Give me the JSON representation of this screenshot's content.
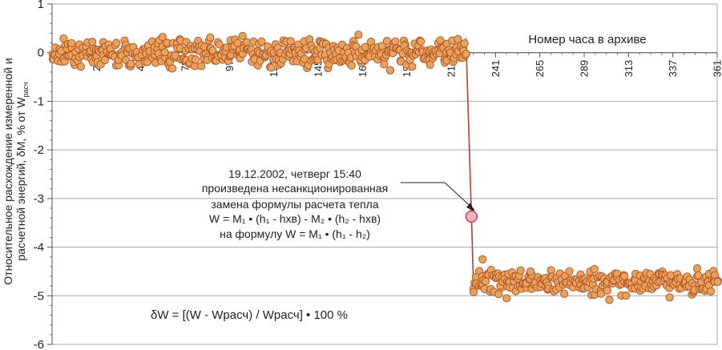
{
  "chart_data": {
    "type": "scatter",
    "xlabel": "Номер часа в архиве",
    "ylabel": {
      "line1": "Относительное расхождение измеренной и",
      "line2_prefix": "расчетной энергий, δM, % от W",
      "line2_sub": "расч"
    },
    "xlim": [
      1,
      361
    ],
    "ylim": [
      -6,
      1
    ],
    "x_ticks": [
      "25",
      "49",
      "73",
      "97",
      "121",
      "145",
      "169",
      "193",
      "217",
      "241",
      "265",
      "289",
      "313",
      "337",
      "361"
    ],
    "y_ticks": [
      "1",
      "0",
      "-1",
      "-2",
      "-3",
      "-4",
      "-5",
      "-6"
    ],
    "grid": true,
    "series_color": "#e8a55a",
    "marker_edge_color": "#b5552a",
    "line_color": "#c03a34",
    "segments": [
      {
        "x_start": 1,
        "x_end": 225,
        "mean": 0.0,
        "spread": 0.35
      },
      {
        "x_start": 229,
        "x_end": 361,
        "mean": -4.72,
        "spread": 0.35
      }
    ],
    "transition": {
      "from": [
        225,
        0.3
      ],
      "via": [
        228,
        -3.37
      ],
      "to": [
        229,
        -4.65
      ]
    },
    "event_point": {
      "x": 228,
      "y": -3.37,
      "color": "#f6b2c3"
    },
    "outliers": [
      [
        234,
        -4.25
      ],
      [
        247,
        -5.05
      ],
      [
        260,
        -4.5
      ]
    ],
    "annotation": {
      "line1": "19.12.2002, четверг 15:40",
      "line2": "произведена несанкционированная",
      "line3": "замена формулы расчета тепла",
      "formula1": "W = M₁ • (h₁ - hхв) - M₂ • (h₂ - hхв)",
      "formula2": "на формулу W = M₁ • (h₁ - h₂)"
    },
    "formula_note": "δW = [(W - Wрасч) / Wрасч] • 100 %"
  }
}
